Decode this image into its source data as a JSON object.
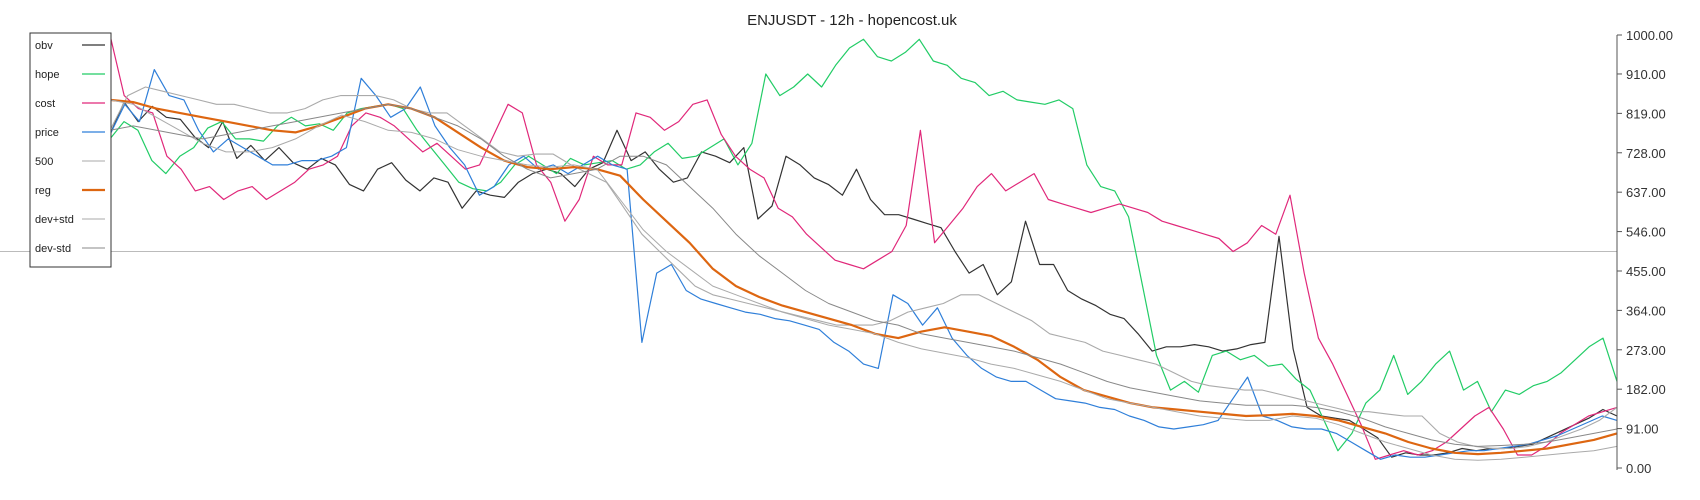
{
  "chart_data": {
    "type": "line",
    "title": "ENJUSDT - 12h - hopencost.uk",
    "xlabel": "",
    "ylabel": "",
    "ylim": [
      0,
      1000
    ],
    "y_ticks": [
      "0.00",
      "91.00",
      "182.00",
      "273.00",
      "364.00",
      "455.00",
      "546.00",
      "637.00",
      "728.00",
      "819.00",
      "910.00",
      "1000.00"
    ],
    "reference_line": 500,
    "grid": false,
    "legend_position": "top-left",
    "series": [
      {
        "name": "obv",
        "color": "#333333",
        "width": 1.2,
        "values": [
          770,
          845,
          800,
          835,
          810,
          805,
          765,
          740,
          800,
          715,
          745,
          710,
          740,
          705,
          690,
          715,
          700,
          655,
          640,
          690,
          705,
          665,
          640,
          670,
          660,
          600,
          640,
          630,
          625,
          660,
          680,
          690,
          680,
          650,
          690,
          705,
          780,
          710,
          730,
          690,
          660,
          670,
          730,
          720,
          705,
          740,
          575,
          605,
          720,
          700,
          670,
          655,
          630,
          690,
          620,
          585,
          585,
          575,
          565,
          555,
          500,
          450,
          470,
          400,
          430,
          570,
          470,
          470,
          410,
          390,
          375,
          355,
          345,
          310,
          270,
          280,
          280,
          285,
          280,
          270,
          275,
          285,
          290,
          535,
          275,
          140,
          120,
          115,
          110,
          90,
          70,
          25,
          35,
          30,
          30,
          35,
          45,
          40,
          45,
          45,
          50,
          55,
          70,
          85,
          100,
          115,
          135,
          120
        ]
      },
      {
        "name": "hope",
        "color": "#22cc66",
        "width": 1.2,
        "values": [
          760,
          800,
          780,
          710,
          680,
          720,
          740,
          785,
          800,
          760,
          760,
          755,
          790,
          810,
          790,
          795,
          780,
          820,
          830,
          835,
          840,
          830,
          780,
          740,
          700,
          660,
          645,
          640,
          660,
          700,
          720,
          700,
          680,
          715,
          700,
          705,
          710,
          690,
          700,
          730,
          750,
          715,
          720,
          740,
          760,
          700,
          750,
          910,
          860,
          880,
          910,
          880,
          930,
          970,
          990,
          950,
          940,
          960,
          990,
          940,
          930,
          900,
          890,
          860,
          870,
          850,
          845,
          840,
          850,
          830,
          700,
          650,
          640,
          580,
          420,
          260,
          180,
          200,
          175,
          260,
          270,
          250,
          260,
          235,
          240,
          205,
          180,
          110,
          40,
          80,
          150,
          180,
          260,
          170,
          200,
          240,
          270,
          180,
          200,
          130,
          180,
          170,
          190,
          200,
          220,
          250,
          280,
          300,
          200
        ]
      },
      {
        "name": "cost",
        "color": "#e0287a",
        "width": 1.2,
        "values": [
          1000,
          860,
          830,
          820,
          720,
          690,
          640,
          650,
          620,
          640,
          650,
          620,
          640,
          660,
          690,
          700,
          720,
          790,
          820,
          810,
          790,
          760,
          730,
          750,
          720,
          690,
          700,
          770,
          840,
          820,
          700,
          660,
          570,
          620,
          720,
          700,
          700,
          820,
          810,
          780,
          800,
          840,
          850,
          770,
          720,
          690,
          670,
          600,
          580,
          540,
          510,
          480,
          470,
          460,
          480,
          500,
          560,
          780,
          520,
          560,
          600,
          650,
          680,
          640,
          660,
          680,
          620,
          610,
          600,
          590,
          600,
          610,
          600,
          590,
          570,
          560,
          550,
          540,
          530,
          500,
          520,
          560,
          540,
          630,
          450,
          300,
          240,
          170,
          100,
          20,
          30,
          40,
          30,
          40,
          60,
          90,
          120,
          140,
          90,
          30,
          30,
          50,
          80,
          100,
          120,
          130,
          140
        ]
      },
      {
        "name": "price",
        "color": "#2f7fd9",
        "width": 1.2,
        "values": [
          770,
          840,
          800,
          920,
          860,
          850,
          780,
          730,
          760,
          740,
          720,
          700,
          700,
          710,
          710,
          720,
          740,
          900,
          860,
          810,
          830,
          880,
          790,
          740,
          700,
          630,
          650,
          700,
          720,
          690,
          700,
          680,
          700,
          720,
          700,
          690,
          290,
          450,
          470,
          410,
          390,
          380,
          370,
          360,
          355,
          345,
          340,
          330,
          320,
          290,
          270,
          240,
          230,
          400,
          380,
          330,
          370,
          300,
          260,
          230,
          210,
          200,
          200,
          180,
          160,
          155,
          150,
          140,
          135,
          120,
          110,
          95,
          90,
          95,
          100,
          110,
          160,
          210,
          120,
          110,
          95,
          90,
          90,
          80,
          60,
          40,
          20,
          30,
          25,
          25,
          30,
          35,
          40,
          40,
          45,
          50,
          55,
          65,
          75,
          90,
          105,
          120,
          110
        ]
      },
      {
        "name": "500",
        "color": "#aaaaaa",
        "width": 1.1,
        "values": [
          780,
          860,
          880,
          870,
          860,
          850,
          840,
          840,
          830,
          820,
          820,
          830,
          850,
          860,
          860,
          860,
          850,
          830,
          820,
          820,
          790,
          760,
          730,
          720,
          725,
          725,
          700,
          680,
          660,
          600,
          540,
          500,
          460,
          420,
          400,
          390,
          380,
          370,
          360,
          350,
          340,
          330,
          330,
          330,
          340,
          360,
          370,
          380,
          400,
          400,
          380,
          360,
          340,
          310,
          300,
          290,
          270,
          260,
          250,
          240,
          220,
          200,
          190,
          185,
          180,
          180,
          170,
          160,
          150,
          140,
          130,
          130,
          125,
          120,
          120,
          80,
          60,
          50,
          45,
          45,
          50,
          60,
          75,
          90,
          110,
          140
        ]
      },
      {
        "name": "reg",
        "color": "#dd6611",
        "width": 2.2,
        "values": [
          850,
          845,
          830,
          820,
          810,
          800,
          790,
          780,
          775,
          790,
          810,
          830,
          840,
          830,
          810,
          775,
          740,
          710,
          695,
          690,
          695,
          690,
          675,
          620,
          570,
          520,
          460,
          420,
          395,
          375,
          360,
          345,
          330,
          310,
          300,
          315,
          325,
          315,
          305,
          280,
          250,
          210,
          180,
          165,
          150,
          140,
          135,
          130,
          125,
          120,
          122,
          125,
          120,
          110,
          95,
          80,
          60,
          45,
          35,
          32,
          35,
          40,
          45,
          55,
          65,
          80
        ]
      },
      {
        "name": "dev+std",
        "color": "#aaaaaa",
        "width": 1.0,
        "values": [
          850,
          840,
          810,
          780,
          750,
          730,
          730,
          740,
          760,
          790,
          815,
          800,
          780,
          775,
          760,
          735,
          720,
          710,
          700,
          695,
          700,
          690,
          620,
          550,
          500,
          460,
          420,
          400,
          380,
          360,
          345,
          330,
          320,
          310,
          290,
          275,
          265,
          255,
          240,
          230,
          215,
          200,
          180,
          160,
          150,
          140,
          130,
          120,
          115,
          110,
          110,
          120,
          115,
          100,
          80,
          60,
          45,
          30,
          20,
          18,
          20,
          25,
          30,
          35,
          40,
          50
        ]
      },
      {
        "name": "dev-std",
        "color": "#888888",
        "width": 1.0,
        "values": [
          780,
          790,
          780,
          770,
          760,
          770,
          780,
          790,
          800,
          810,
          820,
          830,
          840,
          830,
          810,
          790,
          760,
          720,
          690,
          670,
          680,
          690,
          720,
          720,
          700,
          650,
          600,
          540,
          490,
          450,
          410,
          380,
          360,
          340,
          330,
          310,
          300,
          290,
          280,
          270,
          255,
          240,
          220,
          200,
          185,
          175,
          165,
          155,
          150,
          145,
          145,
          145,
          140,
          130,
          115,
          95,
          80,
          65,
          55,
          50,
          52,
          55,
          60,
          70,
          80,
          90
        ]
      }
    ]
  }
}
